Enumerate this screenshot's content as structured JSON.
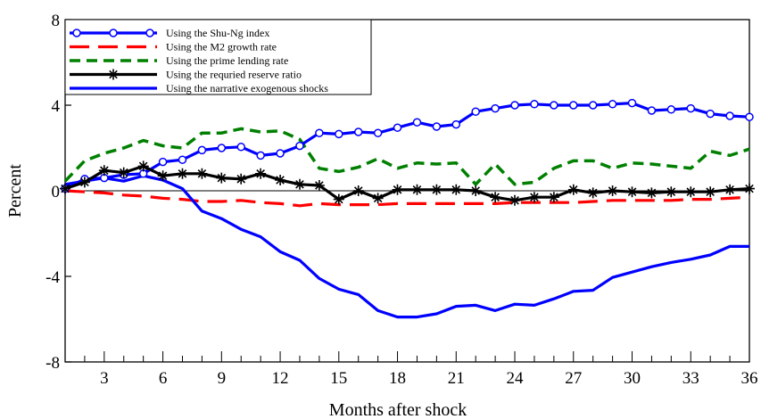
{
  "chart_data": {
    "type": "line",
    "title": "",
    "xlabel": "Months after shock",
    "ylabel": "Percent",
    "xlim": [
      1,
      36
    ],
    "ylim": [
      -8,
      8
    ],
    "x_ticks": [
      3,
      6,
      9,
      12,
      15,
      18,
      21,
      24,
      27,
      30,
      33,
      36
    ],
    "y_ticks": [
      8,
      4,
      0,
      -4,
      -8
    ],
    "legend_position": "top-left",
    "grid": false,
    "x": [
      1,
      2,
      3,
      4,
      5,
      6,
      7,
      8,
      9,
      10,
      11,
      12,
      13,
      14,
      15,
      16,
      17,
      18,
      19,
      20,
      21,
      22,
      23,
      24,
      25,
      26,
      27,
      28,
      29,
      30,
      31,
      32,
      33,
      34,
      35,
      36
    ],
    "series": [
      {
        "name": "Using the Shu-Ng index",
        "color": "#0000ff",
        "style": "solid-circle-markers",
        "values": [
          0.1,
          0.55,
          0.6,
          0.75,
          0.8,
          1.35,
          1.45,
          1.9,
          2.0,
          2.05,
          1.65,
          1.75,
          2.1,
          2.7,
          2.65,
          2.75,
          2.7,
          2.95,
          3.2,
          3.0,
          3.1,
          3.7,
          3.85,
          4.0,
          4.05,
          4.0,
          4.0,
          4.0,
          4.05,
          4.1,
          3.75,
          3.8,
          3.85,
          3.6,
          3.5,
          3.45
        ]
      },
      {
        "name": "Using the M2 growth rate",
        "color": "#ff0000",
        "style": "long-dash",
        "values": [
          0.0,
          -0.05,
          -0.1,
          -0.2,
          -0.25,
          -0.35,
          -0.4,
          -0.5,
          -0.5,
          -0.45,
          -0.55,
          -0.6,
          -0.7,
          -0.6,
          -0.65,
          -0.65,
          -0.65,
          -0.6,
          -0.6,
          -0.6,
          -0.6,
          -0.6,
          -0.6,
          -0.55,
          -0.55,
          -0.55,
          -0.55,
          -0.5,
          -0.45,
          -0.45,
          -0.45,
          -0.45,
          -0.4,
          -0.4,
          -0.35,
          -0.3
        ]
      },
      {
        "name": "Using the prime lending rate",
        "color": "#008000",
        "style": "dash",
        "values": [
          0.45,
          1.4,
          1.75,
          2.0,
          2.35,
          2.1,
          2.0,
          2.7,
          2.7,
          2.9,
          2.75,
          2.8,
          2.4,
          1.05,
          0.9,
          1.1,
          1.5,
          1.05,
          1.3,
          1.25,
          1.3,
          0.3,
          1.25,
          0.3,
          0.4,
          1.05,
          1.4,
          1.4,
          1.05,
          1.3,
          1.25,
          1.15,
          1.05,
          1.85,
          1.65,
          1.95
        ]
      },
      {
        "name": "Using the requried reserve ratio",
        "color": "#000000",
        "style": "solid-star-markers",
        "values": [
          0.1,
          0.4,
          0.95,
          0.85,
          1.15,
          0.7,
          0.8,
          0.8,
          0.6,
          0.55,
          0.8,
          0.5,
          0.3,
          0.25,
          -0.4,
          0.0,
          -0.35,
          0.05,
          0.05,
          0.05,
          0.05,
          0.0,
          -0.3,
          -0.45,
          -0.3,
          -0.3,
          0.05,
          -0.1,
          0.0,
          -0.05,
          -0.1,
          -0.05,
          -0.05,
          -0.05,
          0.05,
          0.1
        ]
      },
      {
        "name": "Using the narrative exogenous shocks",
        "color": "#0000ff",
        "style": "solid",
        "values": [
          0.3,
          0.45,
          0.6,
          0.45,
          0.7,
          0.5,
          0.1,
          -0.95,
          -1.3,
          -1.8,
          -2.15,
          -2.85,
          -3.25,
          -4.1,
          -4.6,
          -4.85,
          -5.6,
          -5.9,
          -5.9,
          -5.75,
          -5.4,
          -5.35,
          -5.6,
          -5.3,
          -5.35,
          -5.05,
          -4.7,
          -4.65,
          -4.05,
          -3.8,
          -3.55,
          -3.35,
          -3.2,
          -3.0,
          -2.6,
          -2.6
        ]
      }
    ]
  }
}
